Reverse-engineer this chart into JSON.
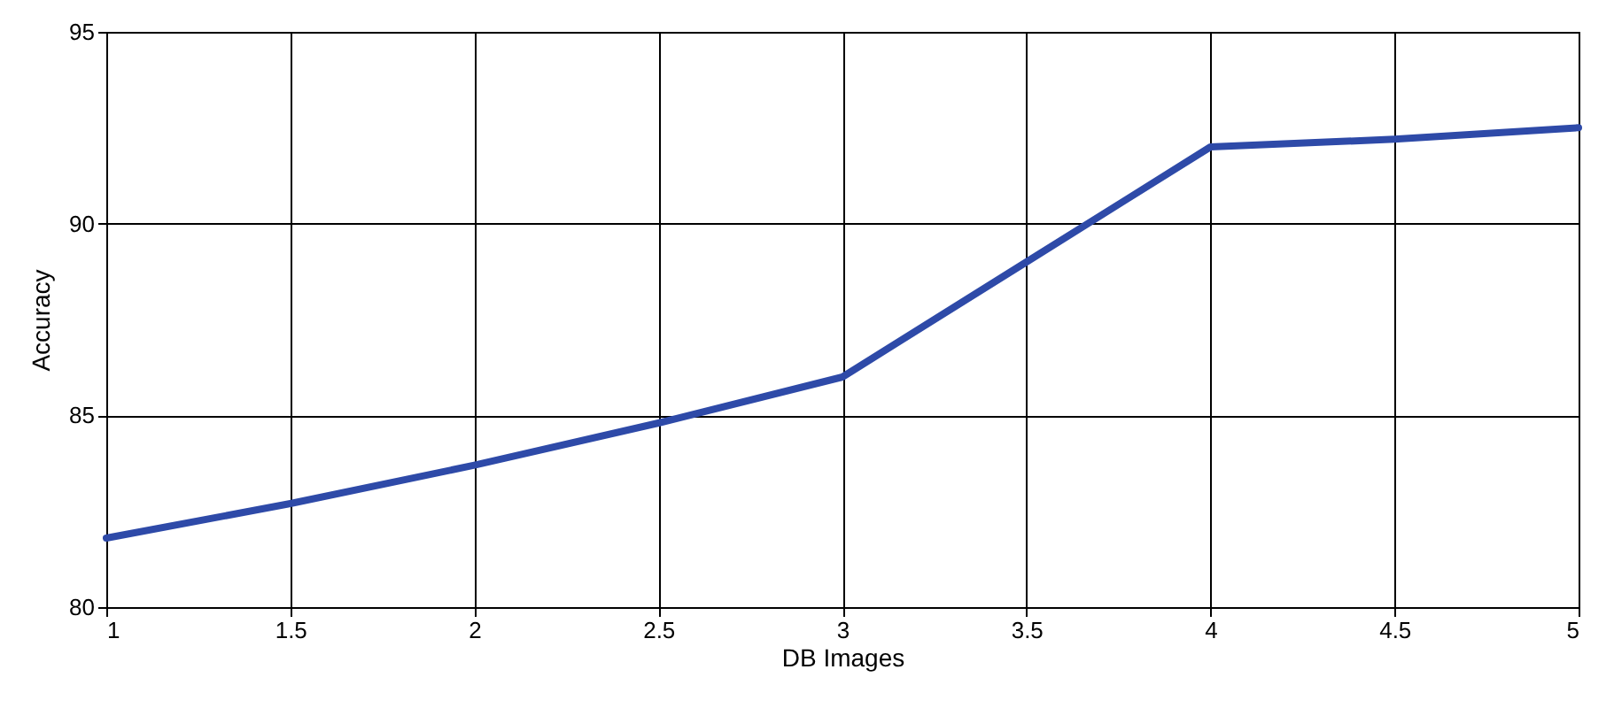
{
  "chart_data": {
    "type": "line",
    "xlabel": "DB Images",
    "ylabel": "Accuracy",
    "x": [
      1,
      1.5,
      2,
      2.5,
      3,
      3.5,
      4,
      4.5,
      5
    ],
    "series": [
      {
        "color": "#2e4aa8",
        "values": [
          81.8,
          82.7,
          83.7,
          84.8,
          86.0,
          89.0,
          92.0,
          92.2,
          92.5
        ]
      }
    ],
    "xlim": [
      1,
      5
    ],
    "xticks": [
      1,
      1.5,
      2,
      2.5,
      3,
      3.5,
      4,
      4.5,
      5
    ],
    "ylim": [
      80,
      95
    ],
    "yticks": [
      80,
      85,
      90,
      95
    ],
    "grid": true,
    "marker": "none",
    "line_style": "solid"
  }
}
